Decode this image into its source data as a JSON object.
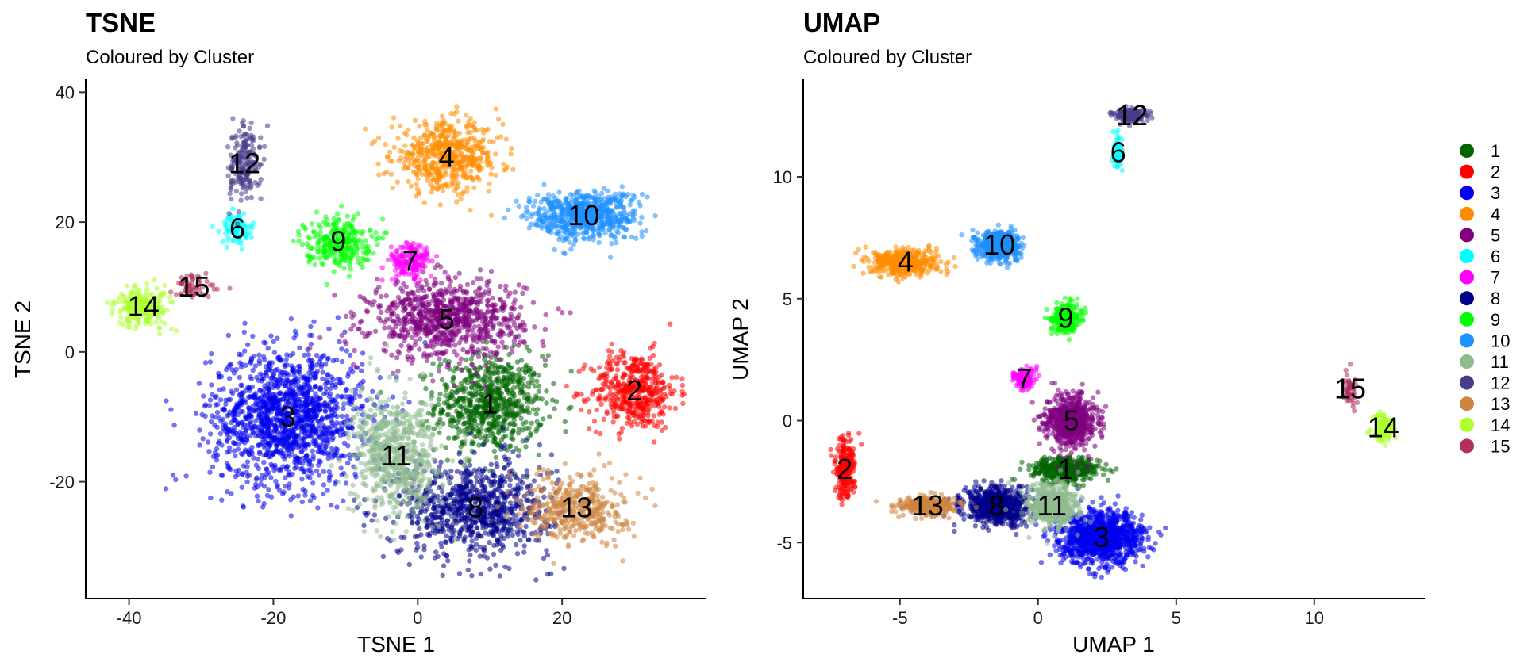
{
  "chart_data": [
    {
      "type": "scatter",
      "title": "TSNE",
      "subtitle": "Coloured by Cluster",
      "xlabel": "TSNE 1",
      "ylabel": "TSNE 2",
      "xlim": [
        -46,
        40
      ],
      "ylim": [
        -38,
        42
      ],
      "xticks": [
        -40,
        -20,
        0,
        20
      ],
      "yticks": [
        -20,
        0,
        20,
        40
      ],
      "grid": false,
      "clusters": [
        {
          "name": "1",
          "x": 10,
          "y": -8,
          "sx": 5,
          "sy": 5,
          "n": 700
        },
        {
          "name": "2",
          "x": 30,
          "y": -6,
          "sx": 4,
          "sy": 4,
          "n": 450
        },
        {
          "name": "3",
          "x": -18,
          "y": -10,
          "sx": 7,
          "sy": 7,
          "n": 1400
        },
        {
          "name": "4",
          "x": 4,
          "y": 30,
          "sx": 5,
          "sy": 3.5,
          "n": 550
        },
        {
          "name": "5",
          "x": 4,
          "y": 5,
          "sx": 7,
          "sy": 4,
          "n": 850
        },
        {
          "name": "6",
          "x": -25,
          "y": 19,
          "sx": 1.5,
          "sy": 1.5,
          "n": 90
        },
        {
          "name": "7",
          "x": -1,
          "y": 14,
          "sx": 2,
          "sy": 2,
          "n": 160
        },
        {
          "name": "8",
          "x": 8,
          "y": -24,
          "sx": 7,
          "sy": 5,
          "n": 850
        },
        {
          "name": "9",
          "x": -11,
          "y": 17,
          "sx": 3,
          "sy": 2.5,
          "n": 280
        },
        {
          "name": "10",
          "x": 23,
          "y": 21,
          "sx": 5,
          "sy": 2.5,
          "n": 650
        },
        {
          "name": "11",
          "x": -3,
          "y": -16,
          "sx": 4,
          "sy": 6,
          "n": 650
        },
        {
          "name": "12",
          "x": -24,
          "y": 29,
          "sx": 1.5,
          "sy": 4,
          "n": 190
        },
        {
          "name": "13",
          "x": 22,
          "y": -24,
          "sx": 4.5,
          "sy": 3.5,
          "n": 400
        },
        {
          "name": "14",
          "x": -38,
          "y": 7,
          "sx": 2.5,
          "sy": 2,
          "n": 230
        },
        {
          "name": "15",
          "x": -31,
          "y": 10,
          "sx": 2.5,
          "sy": 1.2,
          "n": 60
        }
      ]
    },
    {
      "type": "scatter",
      "title": "UMAP",
      "subtitle": "Coloured by Cluster",
      "xlabel": "UMAP 1",
      "ylabel": "UMAP 2",
      "xlim": [
        -8.5,
        14
      ],
      "ylim": [
        -7.3,
        14
      ],
      "xticks": [
        -5,
        0,
        5,
        10
      ],
      "yticks": [
        -5,
        0,
        5,
        10
      ],
      "grid": false,
      "clusters": [
        {
          "name": "1",
          "x": 1,
          "y": -2,
          "sx": 0.8,
          "sy": 0.35,
          "n": 420
        },
        {
          "name": "2",
          "x": -7,
          "y": -2,
          "sx": 0.25,
          "sy": 0.8,
          "n": 230
        },
        {
          "name": "3",
          "x": 2.3,
          "y": -4.8,
          "sx": 1,
          "sy": 0.7,
          "n": 1100
        },
        {
          "name": "4",
          "x": -4.8,
          "y": 6.5,
          "sx": 0.8,
          "sy": 0.35,
          "n": 450
        },
        {
          "name": "5",
          "x": 1.2,
          "y": 0,
          "sx": 0.6,
          "sy": 0.7,
          "n": 650
        },
        {
          "name": "6",
          "x": 2.9,
          "y": 11,
          "sx": 0.12,
          "sy": 0.4,
          "n": 70
        },
        {
          "name": "7",
          "x": -0.5,
          "y": 1.7,
          "sx": 0.25,
          "sy": 0.3,
          "n": 140
        },
        {
          "name": "8",
          "x": -1.5,
          "y": -3.5,
          "sx": 0.8,
          "sy": 0.5,
          "n": 650
        },
        {
          "name": "9",
          "x": 1,
          "y": 4.2,
          "sx": 0.35,
          "sy": 0.4,
          "n": 260
        },
        {
          "name": "10",
          "x": -1.4,
          "y": 7.2,
          "sx": 0.5,
          "sy": 0.4,
          "n": 500
        },
        {
          "name": "11",
          "x": 0.5,
          "y": -3.5,
          "sx": 0.6,
          "sy": 0.6,
          "n": 550
        },
        {
          "name": "12",
          "x": 3.4,
          "y": 12.5,
          "sx": 0.4,
          "sy": 0.18,
          "n": 190
        },
        {
          "name": "13",
          "x": -4,
          "y": -3.5,
          "sx": 0.7,
          "sy": 0.25,
          "n": 320
        },
        {
          "name": "14",
          "x": 12.5,
          "y": -0.3,
          "sx": 0.25,
          "sy": 0.35,
          "n": 190
        },
        {
          "name": "15",
          "x": 11.3,
          "y": 1.3,
          "sx": 0.15,
          "sy": 0.4,
          "n": 50
        }
      ]
    }
  ],
  "colors": {
    "1": "#006400",
    "2": "#FF0000",
    "3": "#0000EE",
    "4": "#FF8C00",
    "5": "#800080",
    "6": "#00FFFF",
    "7": "#FF00FF",
    "8": "#00008B",
    "9": "#00FF00",
    "10": "#1E90FF",
    "11": "#8FBC8F",
    "12": "#483D8B",
    "13": "#CD853F",
    "14": "#ADFF2F",
    "15": "#B03060"
  },
  "legend": {
    "placement": "right",
    "labels": [
      "1",
      "2",
      "3",
      "4",
      "5",
      "6",
      "7",
      "8",
      "9",
      "10",
      "11",
      "12",
      "13",
      "14",
      "15"
    ]
  }
}
